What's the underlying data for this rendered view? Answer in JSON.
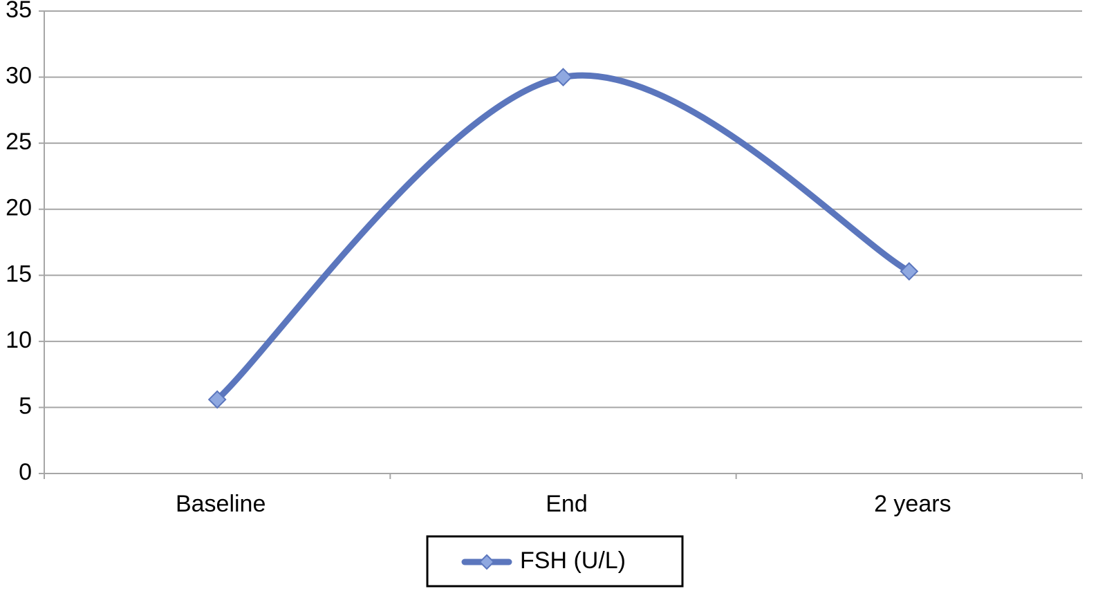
{
  "chart_data": {
    "type": "line",
    "categories": [
      "Baseline",
      "End",
      "2 years"
    ],
    "series": [
      {
        "name": "FSH (U/L)",
        "color": "#5b76bd",
        "values": [
          5.6,
          30,
          15.3
        ]
      }
    ],
    "ylim": [
      0,
      35
    ],
    "yticks": [
      0,
      5,
      10,
      15,
      20,
      25,
      30,
      35
    ],
    "grid": true,
    "smooth": true,
    "legend": "bottom"
  }
}
